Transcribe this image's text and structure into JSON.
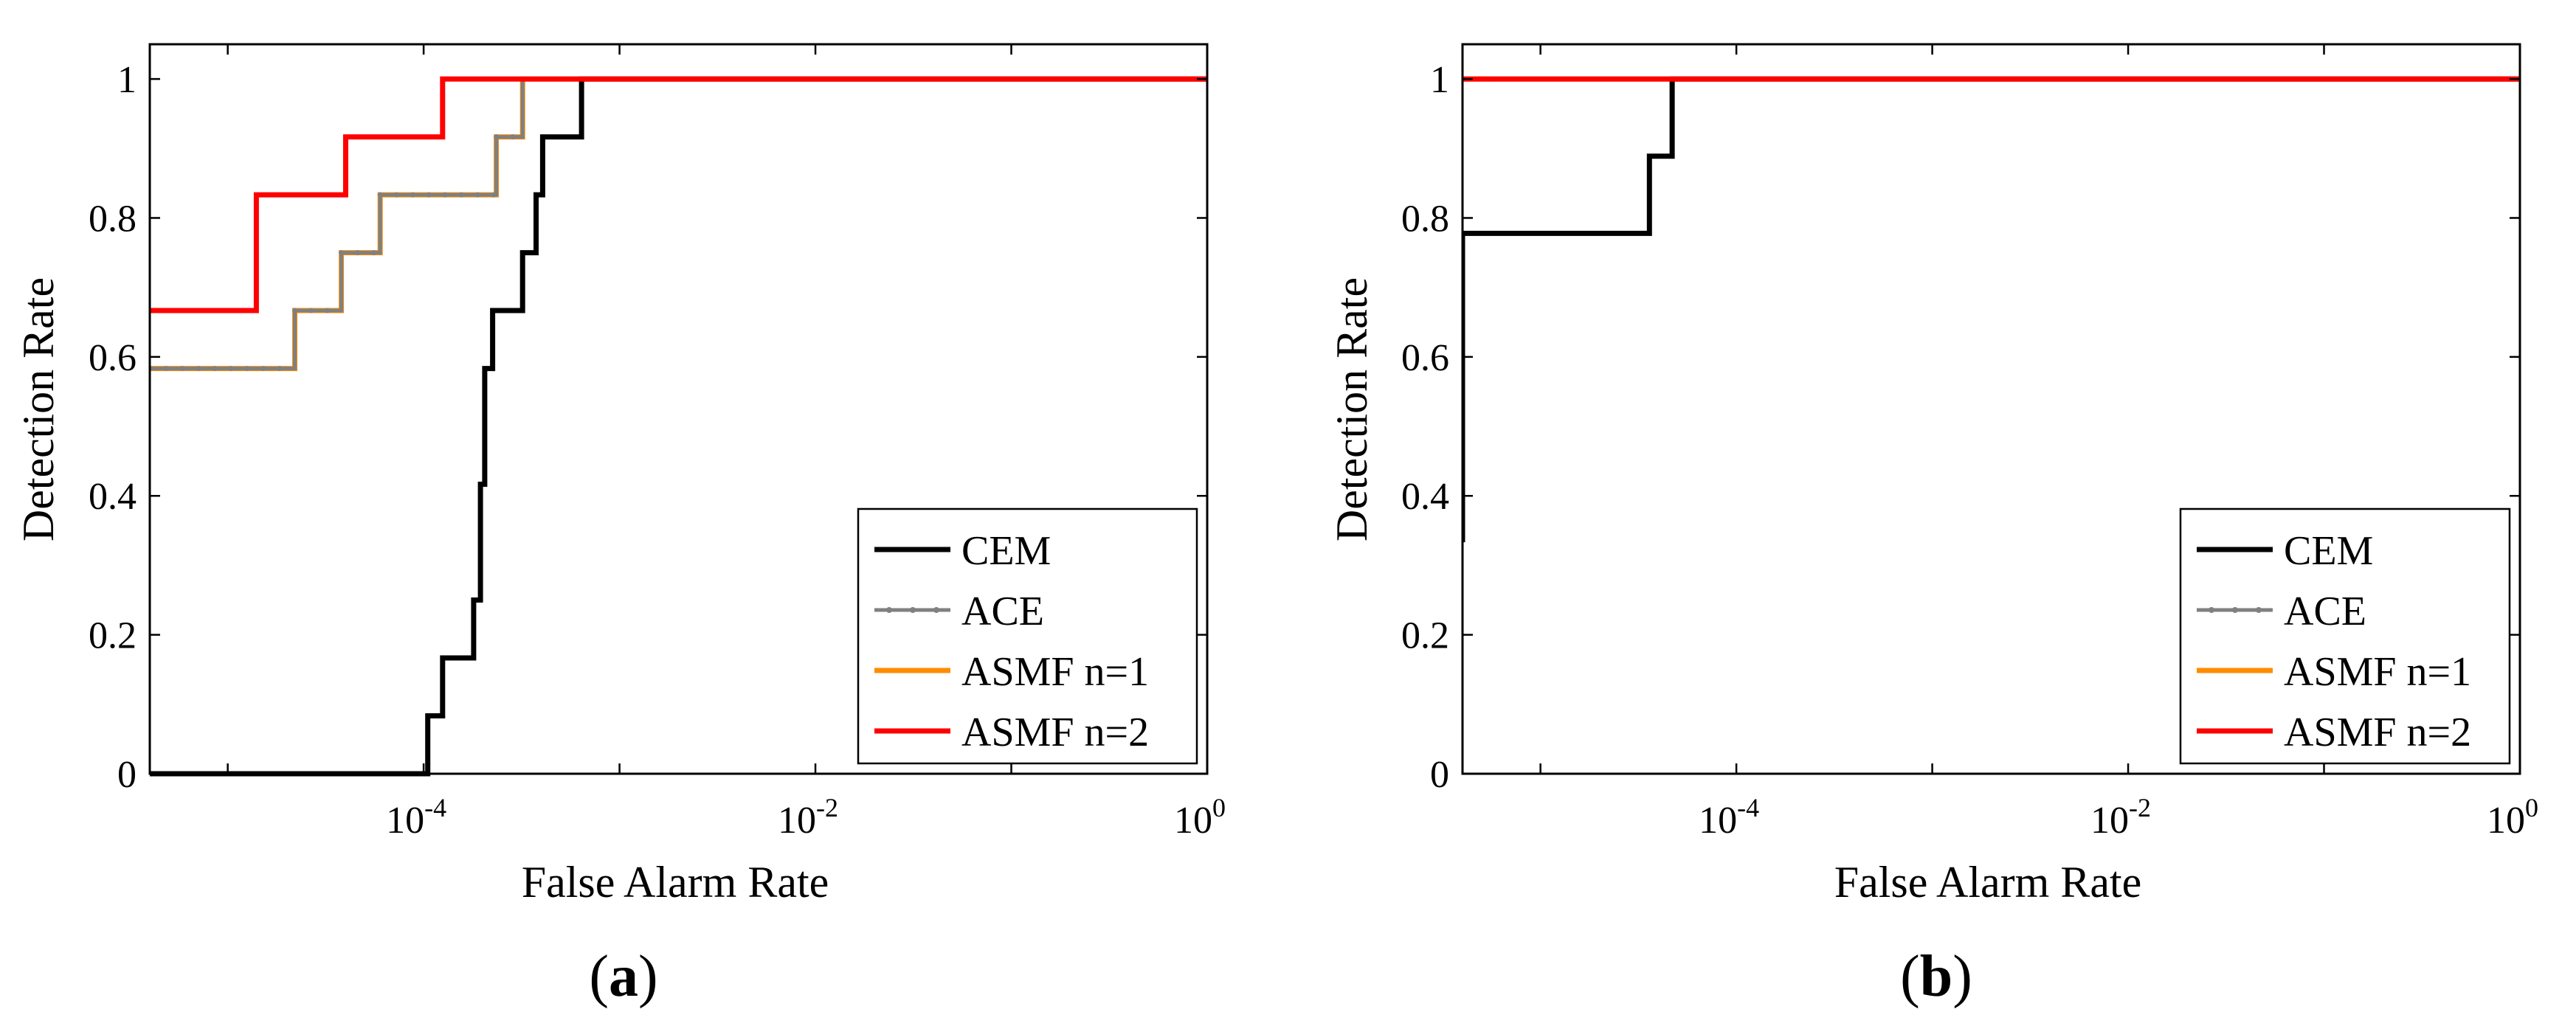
{
  "chart_data": [
    {
      "panel": "a",
      "type": "line",
      "xlabel": "False Alarm Rate",
      "ylabel": "Detection Rate",
      "x_scale": "log",
      "xlim": [
        4e-06,
        1
      ],
      "ylim": [
        0,
        1.05
      ],
      "x_ticks": [
        {
          "base": "10",
          "exp": "-4",
          "value": 0.0001
        },
        {
          "base": "10",
          "exp": "-2",
          "value": 0.01
        },
        {
          "base": "10",
          "exp": "0",
          "value": 1
        }
      ],
      "y_ticks": [
        {
          "label": "0",
          "value": 0
        },
        {
          "label": "0.2",
          "value": 0.2
        },
        {
          "label": "0.4",
          "value": 0.4
        },
        {
          "label": "0.6",
          "value": 0.6
        },
        {
          "label": "0.8",
          "value": 0.8
        },
        {
          "label": "1",
          "value": 1
        }
      ],
      "legend": {
        "position": "bottom-right"
      },
      "series": [
        {
          "name": "CEM",
          "color": "#000000",
          "marker": false,
          "x": [
            4e-06,
            0.000105,
            0.000105,
            0.000125,
            0.000125,
            0.00018,
            0.00018,
            0.000195,
            0.000195,
            0.000205,
            0.000205,
            0.000225,
            0.000225,
            0.00032,
            0.00032,
            0.000375,
            0.000375,
            0.000405,
            0.000405,
            0.00064,
            0.00064,
            0.000765,
            0.000765,
            1
          ],
          "y": [
            0,
            0,
            0.0833,
            0.0833,
            0.1667,
            0.1667,
            0.25,
            0.25,
            0.4167,
            0.4167,
            0.5833,
            0.5833,
            0.6667,
            0.6667,
            0.75,
            0.75,
            0.8333,
            0.8333,
            0.9167,
            0.9167,
            1,
            1,
            1,
            1
          ]
        },
        {
          "name": "ACE",
          "color": "#808080",
          "marker": true,
          "x": [
            4e-06,
            2.2e-05,
            2.2e-05,
            3.8e-05,
            3.8e-05,
            6e-05,
            6e-05,
            0.000235,
            0.000235,
            0.00032,
            0.00032,
            1
          ],
          "y": [
            0.5833,
            0.5833,
            0.6667,
            0.6667,
            0.75,
            0.75,
            0.8333,
            0.8333,
            0.9167,
            0.9167,
            1,
            1
          ]
        },
        {
          "name": "ASMF n=1",
          "color": "#FF8C00",
          "marker": false,
          "x": [
            4e-06,
            2.2e-05,
            2.2e-05,
            3.8e-05,
            3.8e-05,
            6e-05,
            6e-05,
            0.000235,
            0.000235,
            0.00032,
            0.00032,
            1
          ],
          "y": [
            0.5833,
            0.5833,
            0.6667,
            0.6667,
            0.75,
            0.75,
            0.8333,
            0.8333,
            0.9167,
            0.9167,
            1,
            1
          ]
        },
        {
          "name": "ASMF n=2",
          "color": "#FF0000",
          "marker": false,
          "x": [
            4e-06,
            1.4e-05,
            1.4e-05,
            4e-05,
            4e-05,
            0.000125,
            0.000125,
            1
          ],
          "y": [
            0.6667,
            0.6667,
            0.8333,
            0.8333,
            0.9167,
            0.9167,
            1,
            1
          ]
        }
      ]
    },
    {
      "panel": "b",
      "type": "line",
      "xlabel": "False Alarm Rate",
      "ylabel": "Detection Rate",
      "x_scale": "log",
      "xlim": [
        4e-06,
        1
      ],
      "ylim": [
        0,
        1.05
      ],
      "x_ticks": [
        {
          "base": "10",
          "exp": "-4",
          "value": 0.0001
        },
        {
          "base": "10",
          "exp": "-2",
          "value": 0.01
        },
        {
          "base": "10",
          "exp": "0",
          "value": 1
        }
      ],
      "y_ticks": [
        {
          "label": "0",
          "value": 0
        },
        {
          "label": "0.2",
          "value": 0.2
        },
        {
          "label": "0.4",
          "value": 0.4
        },
        {
          "label": "0.6",
          "value": 0.6
        },
        {
          "label": "0.8",
          "value": 0.8
        },
        {
          "label": "1",
          "value": 1
        }
      ],
      "legend": {
        "position": "bottom-right"
      },
      "series": [
        {
          "name": "CEM",
          "color": "#000000",
          "marker": false,
          "x": [
            4e-06,
            4e-06,
            4e-06,
            3.6e-05,
            3.6e-05,
            4.7e-05,
            4.7e-05,
            1
          ],
          "y": [
            0.3333,
            0.7778,
            0.7778,
            0.7778,
            0.8889,
            0.8889,
            1,
            1
          ]
        },
        {
          "name": "ACE",
          "color": "#808080",
          "marker": true,
          "x": [
            4e-06,
            0.0001
          ],
          "y": [
            1,
            1
          ]
        },
        {
          "name": "ASMF n=1",
          "color": "#FF8C00",
          "marker": false,
          "x": [
            4e-06,
            1
          ],
          "y": [
            1,
            1
          ]
        },
        {
          "name": "ASMF n=2",
          "color": "#FF0000",
          "marker": false,
          "x": [
            4e-06,
            1
          ],
          "y": [
            1,
            1
          ]
        }
      ]
    }
  ],
  "panel_labels": [
    {
      "open": "(",
      "letter": "a",
      "close": ")"
    },
    {
      "open": "(",
      "letter": "b",
      "close": ")"
    }
  ]
}
